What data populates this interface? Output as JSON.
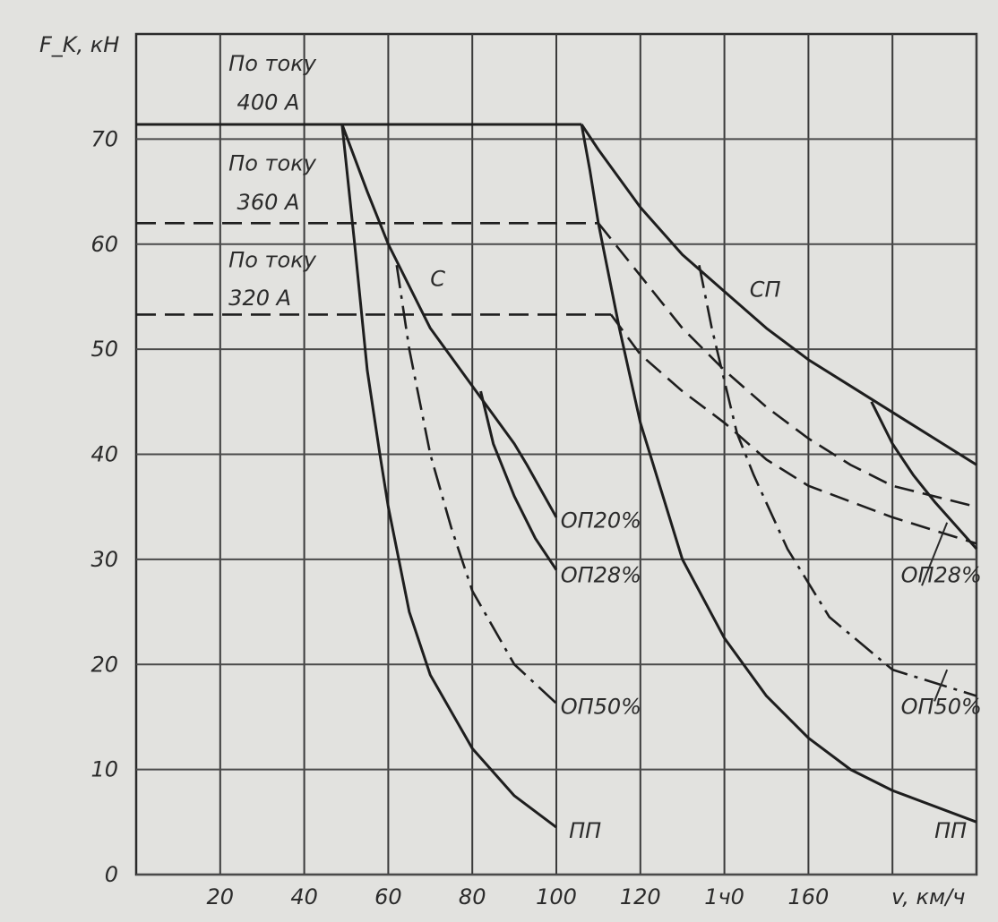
{
  "chart_data": {
    "type": "line",
    "title": "",
    "xlabel": "v, км/ч",
    "ylabel": "F_K, кН",
    "ylabel_main": "F",
    "ylabel_sub": "K",
    "ylabel_unit": ", кН",
    "xlim": [
      0,
      200
    ],
    "ylim": [
      0,
      80
    ],
    "grid": true,
    "xticks": [
      20,
      40,
      60,
      80,
      100,
      120,
      140,
      160,
      180
    ],
    "yticks": [
      0,
      10,
      20,
      30,
      40,
      50,
      60,
      70
    ],
    "xtick_labels": [
      "20",
      "40",
      "60",
      "80",
      "100",
      "120",
      "1ч0",
      "160",
      ""
    ],
    "ytick_labels": [
      "0",
      "10",
      "20",
      "30",
      "40",
      "50",
      "60",
      "70"
    ],
    "series": [
      {
        "name": "По току 400 А",
        "style": "solid",
        "points": [
          [
            0,
            71.4
          ],
          [
            106,
            71.4
          ]
        ]
      },
      {
        "name": "По току 360 А",
        "style": "dashed",
        "points": [
          [
            0,
            62
          ],
          [
            110,
            62
          ]
        ]
      },
      {
        "name": "По току 320 А",
        "style": "dashed",
        "points": [
          [
            0,
            53.3
          ],
          [
            113,
            53.3
          ]
        ]
      },
      {
        "name": "С",
        "style": "solid",
        "points": [
          [
            49,
            71.4
          ],
          [
            55,
            65
          ],
          [
            60,
            60
          ],
          [
            70,
            52
          ],
          [
            80,
            46.5
          ],
          [
            90,
            41
          ],
          [
            93,
            39
          ],
          [
            100,
            34
          ]
        ]
      },
      {
        "name": "С ОП28%",
        "style": "solid",
        "points": [
          [
            82,
            46
          ],
          [
            85,
            41
          ],
          [
            90,
            36
          ],
          [
            95,
            32
          ],
          [
            100,
            29
          ]
        ]
      },
      {
        "name": "С ОП50%",
        "style": "dashdot",
        "points": [
          [
            62,
            58
          ],
          [
            65,
            50
          ],
          [
            70,
            40
          ],
          [
            75,
            33
          ],
          [
            80,
            27
          ],
          [
            90,
            20
          ],
          [
            100,
            16.3
          ]
        ]
      },
      {
        "name": "С ПП",
        "style": "solid",
        "points": [
          [
            49,
            71.4
          ],
          [
            52,
            60
          ],
          [
            55,
            48
          ],
          [
            58,
            40
          ],
          [
            60,
            35
          ],
          [
            65,
            25
          ],
          [
            70,
            19
          ],
          [
            80,
            12
          ],
          [
            90,
            7.5
          ],
          [
            100,
            4.5
          ]
        ]
      },
      {
        "name": "СП",
        "style": "solid",
        "points": [
          [
            106,
            71.4
          ],
          [
            110,
            69
          ],
          [
            120,
            63.5
          ],
          [
            130,
            59
          ],
          [
            140,
            55.5
          ],
          [
            150,
            52
          ],
          [
            160,
            49
          ],
          [
            170,
            46.5
          ],
          [
            180,
            44
          ],
          [
            190,
            41.5
          ],
          [
            200,
            39
          ]
        ]
      },
      {
        "name": "СП ПП",
        "style": "solid",
        "points": [
          [
            106,
            71.4
          ],
          [
            108,
            67
          ],
          [
            110,
            62
          ],
          [
            115,
            52
          ],
          [
            120,
            43
          ],
          [
            130,
            30
          ],
          [
            140,
            22.5
          ],
          [
            150,
            17
          ],
          [
            160,
            13
          ],
          [
            170,
            10
          ],
          [
            180,
            8
          ],
          [
            200,
            5
          ]
        ]
      },
      {
        "name": "СП 360 А",
        "style": "dashed",
        "points": [
          [
            110,
            62
          ],
          [
            120,
            57
          ],
          [
            130,
            52
          ],
          [
            140,
            48
          ],
          [
            150,
            44.5
          ],
          [
            160,
            41.5
          ],
          [
            170,
            39
          ],
          [
            180,
            37
          ],
          [
            200,
            35
          ]
        ]
      },
      {
        "name": "СП 320 А",
        "style": "dashed",
        "points": [
          [
            113,
            53.3
          ],
          [
            120,
            49.5
          ],
          [
            130,
            46
          ],
          [
            140,
            43
          ],
          [
            150,
            39.5
          ],
          [
            160,
            37
          ],
          [
            180,
            34
          ],
          [
            200,
            31.5
          ]
        ]
      },
      {
        "name": "СП ОП50%",
        "style": "dashdot",
        "points": [
          [
            134,
            58
          ],
          [
            137,
            52
          ],
          [
            140,
            47
          ],
          [
            143,
            42
          ],
          [
            147,
            38
          ],
          [
            155,
            31
          ],
          [
            165,
            24.5
          ],
          [
            180,
            19.5
          ],
          [
            200,
            17
          ]
        ]
      },
      {
        "name": "СП ОП28%",
        "style": "solid",
        "points": [
          [
            175,
            45
          ],
          [
            180,
            41
          ],
          [
            185,
            38
          ],
          [
            190,
            35.5
          ],
          [
            200,
            31
          ]
        ]
      }
    ],
    "annotations": [
      {
        "text": "По току",
        "at": [
          22,
          76.5
        ]
      },
      {
        "text": "400 А",
        "at": [
          24,
          72.8
        ]
      },
      {
        "text": "По току",
        "at": [
          22,
          67
        ]
      },
      {
        "text": "360 А",
        "at": [
          24,
          63.3
        ]
      },
      {
        "text": "По току",
        "at": [
          22,
          57.8
        ]
      },
      {
        "text": "320 А",
        "at": [
          22,
          54.2
        ]
      },
      {
        "text": "С",
        "at": [
          70,
          56
        ]
      },
      {
        "text": "СП",
        "at": [
          146,
          55
        ]
      },
      {
        "text": "ОП20%",
        "at": [
          101,
          33
        ]
      },
      {
        "text": "ОП28%",
        "at": [
          101,
          27.8
        ]
      },
      {
        "text": "ОП50%",
        "at": [
          101,
          15.3
        ]
      },
      {
        "text": "ПП",
        "at": [
          103,
          3.5
        ]
      },
      {
        "text": "ОП28%",
        "at": [
          182,
          27.8
        ]
      },
      {
        "text": "ОП50%",
        "at": [
          182,
          15.3
        ]
      },
      {
        "text": "ПП",
        "at": [
          190,
          3.5
        ]
      }
    ]
  }
}
